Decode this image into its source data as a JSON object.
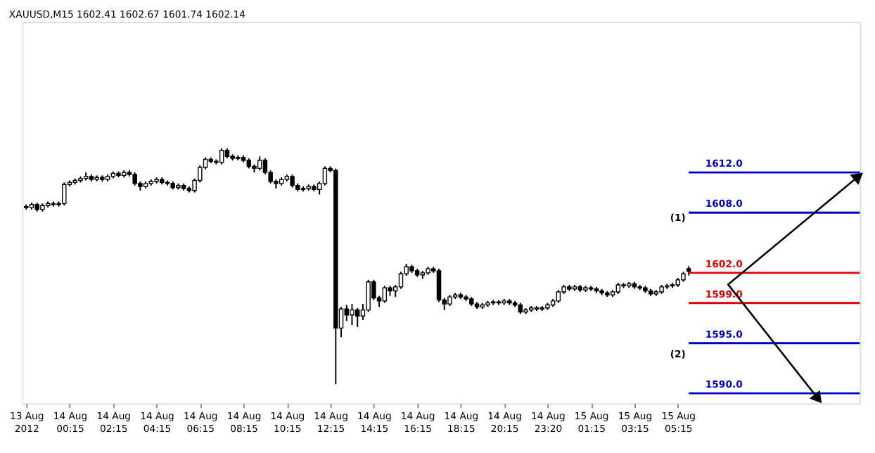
{
  "chart_data": {
    "type": "candlestick",
    "title": "XAUUSD,M15 1602.41 1602.67 1601.74 1602.14",
    "categories": [
      "13 Aug 2012",
      null,
      null,
      null,
      null,
      null,
      null,
      null,
      "14 Aug 00:15",
      null,
      null,
      null,
      null,
      null,
      null,
      null,
      "14 Aug 02:15",
      null,
      null,
      null,
      null,
      null,
      null,
      null,
      "14 Aug 04:15",
      null,
      null,
      null,
      null,
      null,
      null,
      null,
      "14 Aug 06:15",
      null,
      null,
      null,
      null,
      null,
      null,
      null,
      "14 Aug 08:15",
      null,
      null,
      null,
      null,
      null,
      null,
      null,
      "14 Aug 10:15",
      null,
      null,
      null,
      null,
      null,
      null,
      null,
      "14 Aug 12:15",
      null,
      null,
      null,
      null,
      null,
      null,
      null,
      "14 Aug 14:15",
      null,
      null,
      null,
      null,
      null,
      null,
      null,
      "14 Aug 16:15",
      null,
      null,
      null,
      null,
      null,
      null,
      null,
      "14 Aug 18:15",
      null,
      null,
      null,
      null,
      null,
      null,
      null,
      "14 Aug 20:15",
      null,
      null,
      null,
      null,
      null,
      null,
      null,
      "14 Aug 23:20",
      null,
      null,
      null,
      null,
      null,
      null,
      null,
      "15 Aug 01:15",
      null,
      null,
      null,
      null,
      null,
      null,
      null,
      "15 Aug 03:15",
      null,
      null,
      null,
      null,
      null,
      null,
      null,
      "15 Aug 05:15",
      null,
      null
    ],
    "ohlc": [
      [
        1608.6,
        1608.8,
        1608.3,
        1608.5
      ],
      [
        1608.5,
        1609.0,
        1608.3,
        1608.8
      ],
      [
        1608.8,
        1609.0,
        1608.1,
        1608.3
      ],
      [
        1608.3,
        1608.9,
        1608.1,
        1608.7
      ],
      [
        1608.7,
        1609.1,
        1608.5,
        1608.9
      ],
      [
        1608.9,
        1609.1,
        1608.6,
        1608.8
      ],
      [
        1608.8,
        1609.1,
        1608.6,
        1608.9
      ],
      [
        1608.9,
        1611.0,
        1608.7,
        1610.8
      ],
      [
        1610.8,
        1611.2,
        1610.6,
        1611.0
      ],
      [
        1611.0,
        1611.4,
        1610.8,
        1611.2
      ],
      [
        1611.2,
        1611.6,
        1611.0,
        1611.4
      ],
      [
        1611.4,
        1612.0,
        1611.2,
        1611.6
      ],
      [
        1611.6,
        1611.8,
        1611.1,
        1611.3
      ],
      [
        1611.3,
        1611.7,
        1611.1,
        1611.5
      ],
      [
        1611.5,
        1611.7,
        1611.1,
        1611.3
      ],
      [
        1611.3,
        1611.8,
        1611.1,
        1611.6
      ],
      [
        1611.6,
        1612.1,
        1611.4,
        1611.9
      ],
      [
        1611.9,
        1612.1,
        1611.5,
        1611.7
      ],
      [
        1611.7,
        1612.2,
        1611.5,
        1612.0
      ],
      [
        1612.0,
        1612.2,
        1611.6,
        1611.8
      ],
      [
        1611.8,
        1612.0,
        1610.7,
        1610.9
      ],
      [
        1610.9,
        1611.1,
        1610.2,
        1610.6
      ],
      [
        1610.6,
        1611.1,
        1610.4,
        1610.9
      ],
      [
        1610.9,
        1611.3,
        1610.7,
        1611.1
      ],
      [
        1611.1,
        1611.5,
        1610.9,
        1611.3
      ],
      [
        1611.3,
        1611.5,
        1610.8,
        1611.0
      ],
      [
        1611.0,
        1611.2,
        1610.7,
        1610.9
      ],
      [
        1610.9,
        1611.1,
        1610.3,
        1610.5
      ],
      [
        1610.5,
        1610.9,
        1610.3,
        1610.7
      ],
      [
        1610.7,
        1610.9,
        1610.2,
        1610.4
      ],
      [
        1610.4,
        1610.6,
        1610.0,
        1610.2
      ],
      [
        1610.2,
        1611.4,
        1610.0,
        1611.2
      ],
      [
        1611.2,
        1612.7,
        1611.0,
        1612.5
      ],
      [
        1612.5,
        1613.5,
        1612.3,
        1613.3
      ],
      [
        1613.3,
        1613.5,
        1612.9,
        1613.1
      ],
      [
        1613.1,
        1613.3,
        1612.8,
        1613.0
      ],
      [
        1613.0,
        1614.4,
        1612.8,
        1614.2
      ],
      [
        1614.2,
        1614.4,
        1613.4,
        1613.6
      ],
      [
        1613.6,
        1613.8,
        1613.2,
        1613.4
      ],
      [
        1613.4,
        1613.7,
        1613.2,
        1613.5
      ],
      [
        1613.5,
        1613.7,
        1613.0,
        1613.2
      ],
      [
        1613.2,
        1613.4,
        1612.4,
        1612.6
      ],
      [
        1612.6,
        1612.8,
        1612.0,
        1612.4
      ],
      [
        1612.4,
        1613.6,
        1612.2,
        1613.2
      ],
      [
        1613.2,
        1613.4,
        1611.8,
        1612.0
      ],
      [
        1612.0,
        1612.2,
        1610.9,
        1611.1
      ],
      [
        1611.1,
        1611.3,
        1610.4,
        1610.9
      ],
      [
        1610.9,
        1611.5,
        1610.7,
        1611.3
      ],
      [
        1611.3,
        1611.8,
        1611.1,
        1611.6
      ],
      [
        1611.6,
        1611.8,
        1610.5,
        1610.7
      ],
      [
        1610.7,
        1610.9,
        1610.1,
        1610.3
      ],
      [
        1610.3,
        1610.6,
        1610.1,
        1610.4
      ],
      [
        1610.4,
        1610.8,
        1610.2,
        1610.6
      ],
      [
        1610.6,
        1610.8,
        1610.1,
        1610.3
      ],
      [
        1610.3,
        1611.1,
        1609.8,
        1610.9
      ],
      [
        1610.9,
        1612.6,
        1610.7,
        1612.4
      ],
      [
        1612.4,
        1612.6,
        1612.0,
        1612.2
      ],
      [
        1612.2,
        1612.4,
        1590.9,
        1596.5
      ],
      [
        1596.5,
        1598.6,
        1595.6,
        1598.4
      ],
      [
        1598.4,
        1598.8,
        1597.2,
        1597.8
      ],
      [
        1597.8,
        1598.9,
        1596.8,
        1598.3
      ],
      [
        1598.3,
        1598.5,
        1596.6,
        1597.7
      ],
      [
        1597.7,
        1598.9,
        1597.3,
        1598.3
      ],
      [
        1598.3,
        1601.3,
        1598.1,
        1601.1
      ],
      [
        1601.1,
        1601.3,
        1599.3,
        1599.5
      ],
      [
        1599.5,
        1599.7,
        1598.6,
        1599.2
      ],
      [
        1599.2,
        1600.7,
        1599.0,
        1600.5
      ],
      [
        1600.5,
        1600.7,
        1599.7,
        1600.2
      ],
      [
        1600.2,
        1600.8,
        1599.6,
        1600.6
      ],
      [
        1600.6,
        1602.1,
        1600.4,
        1601.9
      ],
      [
        1601.9,
        1602.9,
        1601.7,
        1602.6
      ],
      [
        1602.6,
        1602.8,
        1602.0,
        1602.2
      ],
      [
        1602.2,
        1602.4,
        1601.6,
        1601.8
      ],
      [
        1601.8,
        1602.2,
        1601.4,
        1602.0
      ],
      [
        1602.0,
        1602.6,
        1601.8,
        1602.4
      ],
      [
        1602.4,
        1602.6,
        1602.0,
        1602.2
      ],
      [
        1602.2,
        1602.4,
        1599.1,
        1599.3
      ],
      [
        1599.3,
        1599.5,
        1598.3,
        1598.9
      ],
      [
        1598.9,
        1599.8,
        1598.7,
        1599.6
      ],
      [
        1599.6,
        1600.0,
        1599.4,
        1599.8
      ],
      [
        1599.8,
        1600.0,
        1599.4,
        1599.6
      ],
      [
        1599.6,
        1599.8,
        1599.2,
        1599.4
      ],
      [
        1599.4,
        1599.6,
        1598.7,
        1598.9
      ],
      [
        1598.9,
        1599.1,
        1598.4,
        1598.6
      ],
      [
        1598.6,
        1599.0,
        1598.4,
        1598.8
      ],
      [
        1598.8,
        1599.2,
        1598.6,
        1599.0
      ],
      [
        1599.0,
        1599.3,
        1598.8,
        1599.1
      ],
      [
        1599.1,
        1599.3,
        1598.8,
        1599.0
      ],
      [
        1599.0,
        1599.4,
        1598.8,
        1599.2
      ],
      [
        1599.2,
        1599.4,
        1598.8,
        1599.0
      ],
      [
        1599.0,
        1599.2,
        1598.6,
        1598.8
      ],
      [
        1598.8,
        1599.0,
        1597.9,
        1598.1
      ],
      [
        1598.1,
        1598.5,
        1597.9,
        1598.3
      ],
      [
        1598.3,
        1598.7,
        1598.1,
        1598.5
      ],
      [
        1598.5,
        1598.7,
        1598.2,
        1598.4
      ],
      [
        1598.4,
        1598.7,
        1598.2,
        1598.5
      ],
      [
        1598.5,
        1599.0,
        1598.3,
        1598.8
      ],
      [
        1598.8,
        1599.4,
        1598.6,
        1599.2
      ],
      [
        1599.2,
        1600.3,
        1599.0,
        1600.1
      ],
      [
        1600.1,
        1600.8,
        1599.9,
        1600.6
      ],
      [
        1600.6,
        1600.8,
        1600.2,
        1600.4
      ],
      [
        1600.4,
        1600.8,
        1600.2,
        1600.6
      ],
      [
        1600.6,
        1600.8,
        1600.1,
        1600.3
      ],
      [
        1600.3,
        1600.7,
        1600.1,
        1600.5
      ],
      [
        1600.5,
        1600.7,
        1600.2,
        1600.4
      ],
      [
        1600.4,
        1600.6,
        1600.0,
        1600.2
      ],
      [
        1600.2,
        1600.4,
        1599.8,
        1600.0
      ],
      [
        1600.0,
        1600.2,
        1599.6,
        1599.8
      ],
      [
        1599.8,
        1600.3,
        1599.6,
        1600.1
      ],
      [
        1600.1,
        1601.0,
        1599.9,
        1600.8
      ],
      [
        1600.8,
        1601.0,
        1600.5,
        1600.7
      ],
      [
        1600.7,
        1601.1,
        1600.5,
        1600.9
      ],
      [
        1600.9,
        1601.1,
        1600.4,
        1600.6
      ],
      [
        1600.6,
        1600.8,
        1600.3,
        1600.5
      ],
      [
        1600.5,
        1600.7,
        1600.0,
        1600.2
      ],
      [
        1600.2,
        1600.4,
        1599.7,
        1599.9
      ],
      [
        1599.9,
        1600.3,
        1599.7,
        1600.1
      ],
      [
        1600.1,
        1600.8,
        1599.9,
        1600.6
      ],
      [
        1600.6,
        1600.9,
        1600.4,
        1600.7
      ],
      [
        1600.7,
        1601.0,
        1600.5,
        1600.8
      ],
      [
        1600.8,
        1601.5,
        1600.6,
        1601.3
      ],
      [
        1601.3,
        1602.1,
        1601.1,
        1601.9
      ],
      [
        1602.41,
        1602.67,
        1601.74,
        1602.14
      ]
    ],
    "ylim": [
      1589,
      1627
    ],
    "tick_labels": "x",
    "ref_lines": [
      {
        "axis": "y",
        "value": 1612.0,
        "label": "1612.0",
        "color": "#0000cc"
      },
      {
        "axis": "y",
        "value": 1608.0,
        "label": "1608.0",
        "color": "#0000cc"
      },
      {
        "axis": "y",
        "value": 1602.0,
        "label": "1602.0",
        "color": "#e00000"
      },
      {
        "axis": "y",
        "value": 1599.0,
        "label": "1599.0",
        "color": "#e00000"
      },
      {
        "axis": "y",
        "value": 1595.0,
        "label": "1595.0",
        "color": "#0000cc"
      },
      {
        "axis": "y",
        "value": 1590.0,
        "label": "1590.0",
        "color": "#0000cc"
      }
    ],
    "annotations": [
      "(1)",
      "(2)"
    ]
  }
}
